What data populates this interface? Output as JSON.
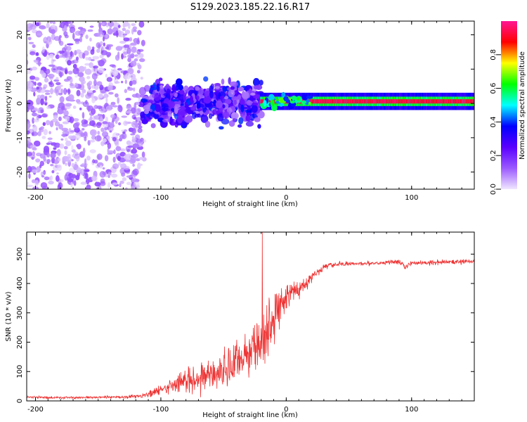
{
  "title": "S129.2023.185.22.16.R17",
  "chart_data": [
    {
      "type": "heatmap",
      "xlabel": "Height of straight line (km)",
      "ylabel": "Frequency (Hz)",
      "xlim": [
        -207,
        150
      ],
      "ylim": [
        -25,
        24
      ],
      "xticks": [
        "-200",
        "-100",
        "0",
        "100"
      ],
      "yticks": [
        "-20",
        "-10",
        "0",
        "10",
        "20"
      ],
      "colorbar": {
        "label": "Normalized spectral amplitude",
        "range": [
          0,
          1
        ],
        "ticks": [
          "0.0",
          "0.2",
          "0.4",
          "0.6",
          "0.8"
        ],
        "colormap": [
          "#f0e6ff",
          "#9b59ff",
          "#5a00ff",
          "#0000ff",
          "#00ffff",
          "#00ff00",
          "#ffff00",
          "#ff0000",
          "#ff1493"
        ]
      },
      "regions": [
        {
          "name": "diffuse noise",
          "x_range": [
            -207,
            -115
          ],
          "freq_range": [
            -25,
            24
          ],
          "level": 0.05
        },
        {
          "name": "turbulent scintillation",
          "x_range": [
            -115,
            -20
          ],
          "freq_range": [
            -8,
            8
          ],
          "level": 0.15
        },
        {
          "name": "coherent carrier",
          "x_range": [
            -20,
            150
          ],
          "freq_center": 0.6,
          "freq_width": 2.5,
          "level": 0.9
        }
      ]
    },
    {
      "type": "line",
      "xlabel": "Height of straight line (km)",
      "ylabel": "SNR (10 * v/v)",
      "xlim": [
        -207,
        150
      ],
      "ylim": [
        0,
        575
      ],
      "xticks": [
        "-200",
        "-100",
        "0",
        "100"
      ],
      "yticks": [
        "0",
        "100",
        "200",
        "300",
        "400",
        "500"
      ],
      "color": "#ee3333",
      "series": [
        {
          "name": "SNR",
          "x": [
            -207,
            -180,
            -150,
            -130,
            -115,
            -100,
            -90,
            -80,
            -70,
            -60,
            -50,
            -40,
            -30,
            -20,
            -10,
            -5,
            0,
            10,
            20,
            30,
            40,
            60,
            80,
            90,
            95,
            100,
            120,
            150
          ],
          "y": [
            13,
            11,
            12,
            13,
            18,
            35,
            55,
            70,
            80,
            90,
            100,
            130,
            170,
            200,
            270,
            330,
            360,
            380,
            420,
            455,
            465,
            468,
            472,
            476,
            455,
            470,
            472,
            476
          ],
          "noise": [
            4,
            4,
            4,
            5,
            8,
            20,
            30,
            45,
            50,
            55,
            60,
            80,
            100,
            120,
            90,
            70,
            50,
            35,
            20,
            12,
            8,
            8,
            8,
            8,
            10,
            8,
            8,
            8
          ],
          "spike": {
            "x": -19,
            "y": 575
          }
        }
      ]
    }
  ]
}
